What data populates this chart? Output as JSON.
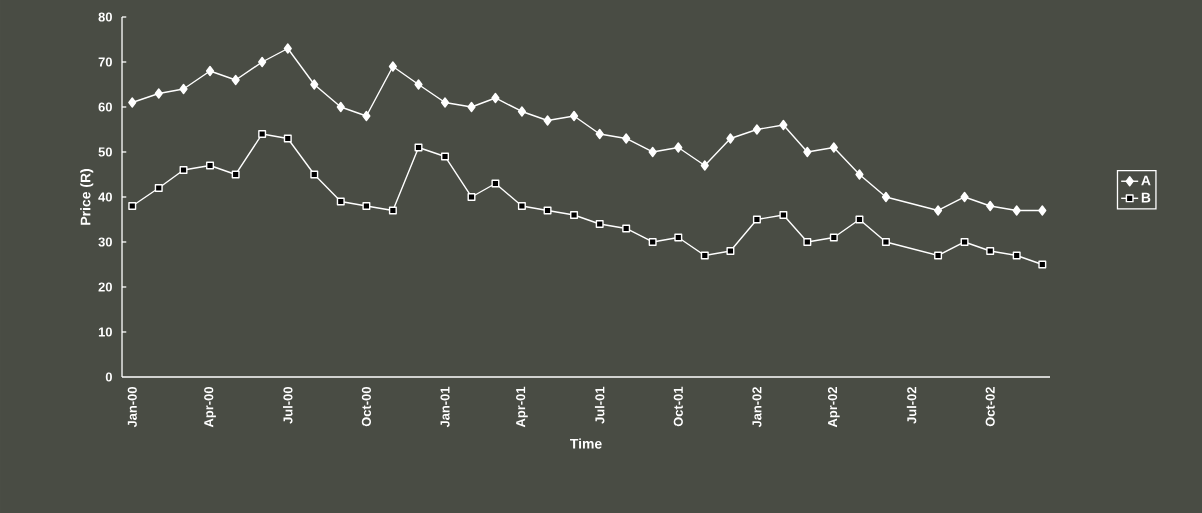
{
  "chart_data": {
    "type": "line",
    "xlabel": "Time",
    "ylabel": "Price (R)",
    "x": [
      "2000-01",
      "2000-02",
      "2000-03",
      "2000-04",
      "2000-05",
      "2000-06",
      "2000-07",
      "2000-08",
      "2000-09",
      "2000-10",
      "2000-11",
      "2000-12",
      "2001-01",
      "2001-02",
      "2001-03",
      "2001-04",
      "2001-05",
      "2001-06",
      "2001-07",
      "2001-08",
      "2001-09",
      "2001-10",
      "2001-11",
      "2001-12",
      "2002-01",
      "2002-02",
      "2002-03",
      "2002-04",
      "2002-05",
      "2002-06",
      "2002-08",
      "2002-09",
      "2002-10",
      "2002-11",
      "2002-12"
    ],
    "series": [
      {
        "name": "A",
        "color": "#ffffff",
        "marker": "diamond",
        "values": [
          61,
          63,
          64,
          68,
          66,
          70,
          73,
          65,
          60,
          58,
          69,
          65,
          61,
          60,
          62,
          59,
          57,
          58,
          54,
          53,
          50,
          51,
          47,
          53,
          55,
          56,
          50,
          51,
          45,
          40,
          37,
          40,
          38,
          37,
          37
        ]
      },
      {
        "name": "B",
        "color": "#ffffff",
        "marker": "square",
        "values": [
          38,
          42,
          46,
          47,
          45,
          54,
          53,
          45,
          39,
          38,
          37,
          51,
          49,
          40,
          43,
          38,
          37,
          36,
          34,
          33,
          30,
          31,
          27,
          28,
          35,
          36,
          30,
          31,
          35,
          30,
          27,
          30,
          28,
          27,
          25
        ]
      }
    ],
    "xlim": [
      "1999-12-20",
      "2002-12-10"
    ],
    "xticks": [
      {
        "value": "2000-01",
        "label": "Jan-00"
      },
      {
        "value": "2000-04",
        "label": "Apr-00"
      },
      {
        "value": "2000-07",
        "label": "Jul-00"
      },
      {
        "value": "2000-10",
        "label": "Oct-00"
      },
      {
        "value": "2001-01",
        "label": "Jan-01"
      },
      {
        "value": "2001-04",
        "label": "Apr-01"
      },
      {
        "value": "2001-07",
        "label": "Jul-01"
      },
      {
        "value": "2001-10",
        "label": "Oct-01"
      },
      {
        "value": "2002-01",
        "label": "Jan-02"
      },
      {
        "value": "2002-04",
        "label": "Apr-02"
      },
      {
        "value": "2002-07",
        "label": "Jul-02"
      },
      {
        "value": "2002-10",
        "label": "Oct-02"
      }
    ],
    "ylim": [
      0,
      80
    ],
    "yticks": [
      0,
      10,
      20,
      30,
      40,
      50,
      60,
      70,
      80
    ],
    "grid": false,
    "legend": "right",
    "line_style": "solid"
  }
}
